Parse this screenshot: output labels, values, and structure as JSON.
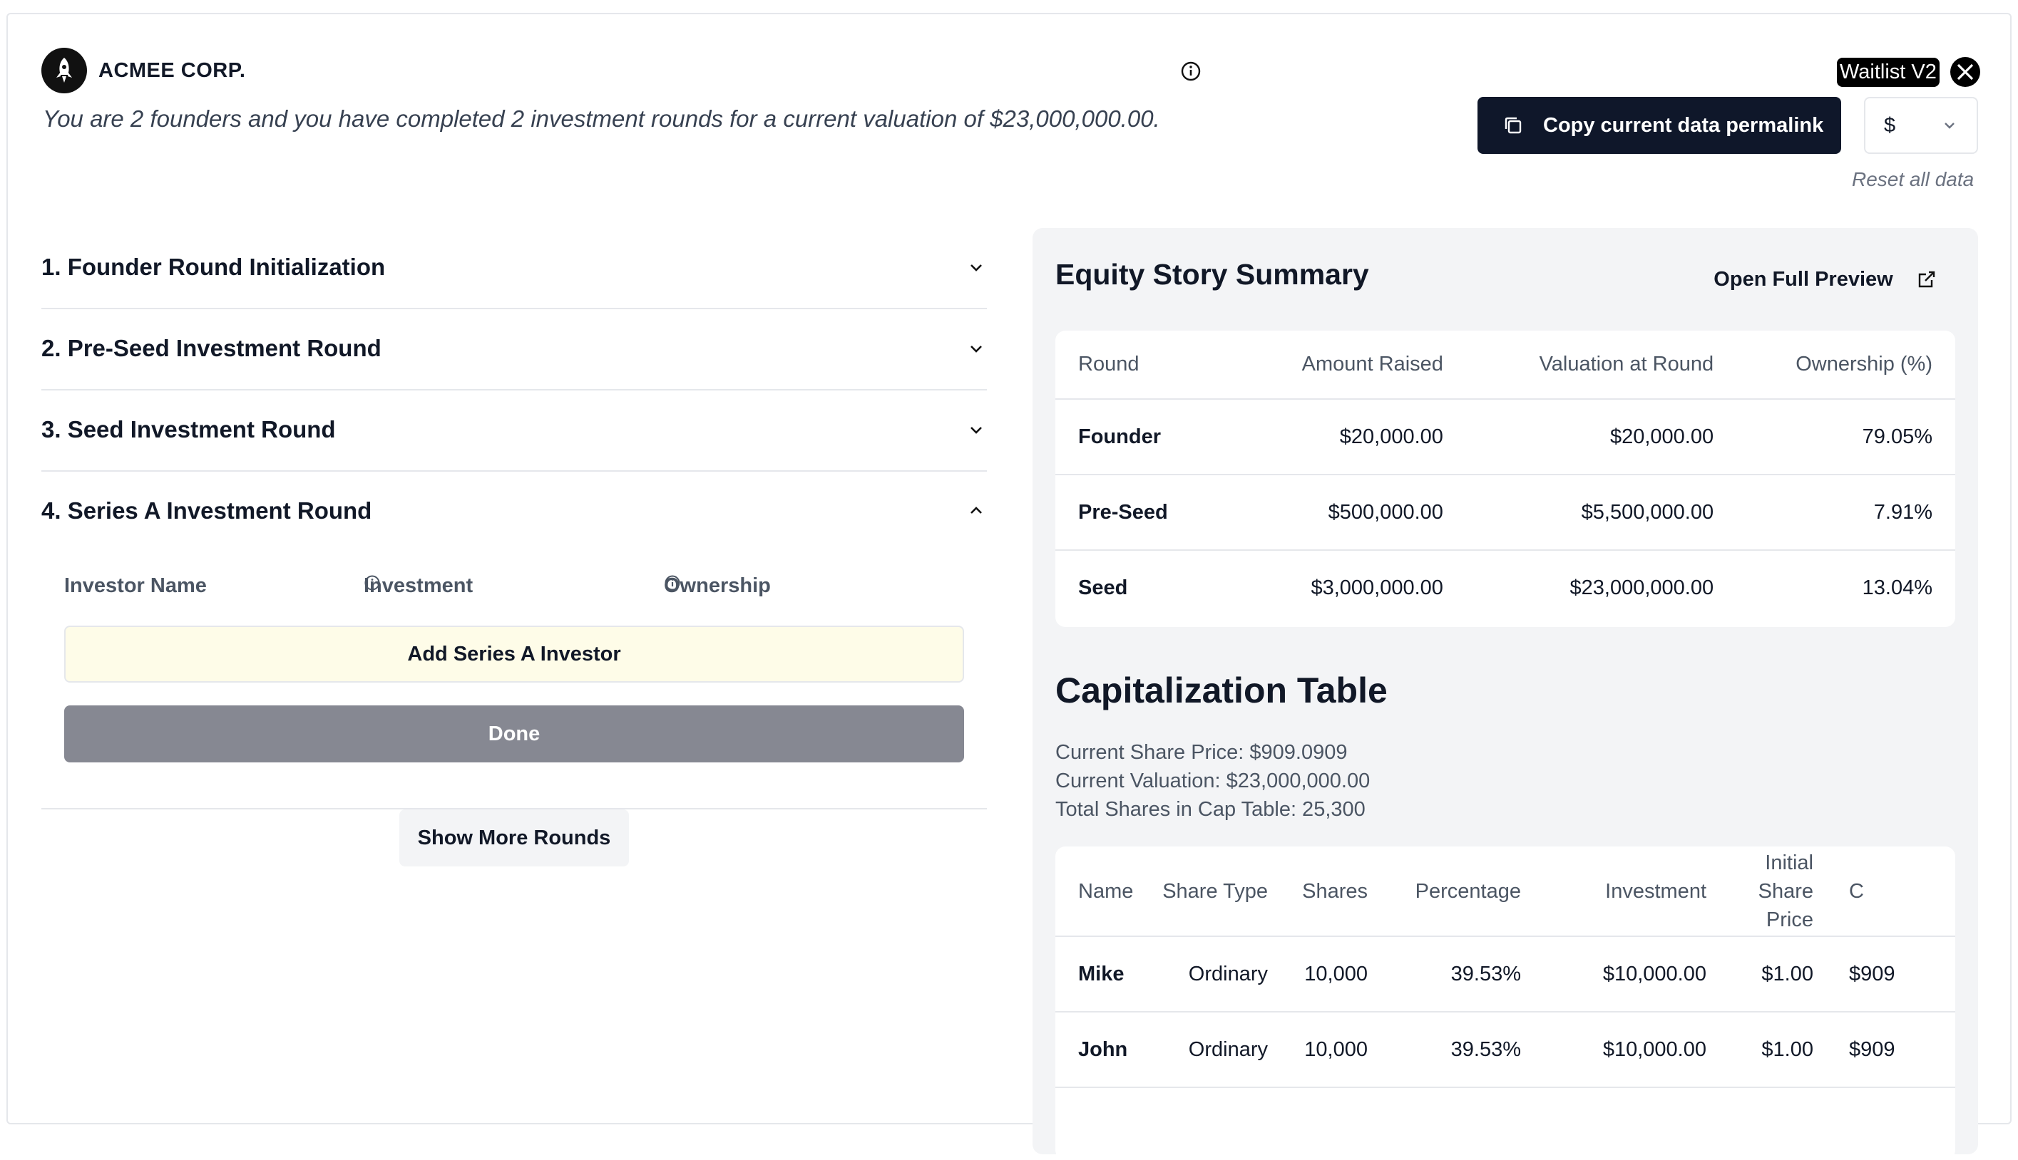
{
  "header": {
    "company": "ACMEE CORP.",
    "tagline": "You are 2 founders and you have completed 2 investment rounds for a current valuation of $23,000,000.00.",
    "waitlist_label": "Waitlist V2",
    "copy_permalink_label": "Copy current data permalink",
    "currency_value": "$",
    "reset_label": "Reset all data"
  },
  "rounds": [
    {
      "label": "1. Founder Round Initialization"
    },
    {
      "label": "2. Pre-Seed Investment Round"
    },
    {
      "label": "3. Seed Investment Round"
    },
    {
      "label": "4. Series A Investment Round"
    }
  ],
  "series_a": {
    "col_investor": "Investor Name",
    "col_investment": "Investment",
    "col_ownership": "Ownership",
    "add_label": "Add Series A Investor",
    "done_label": "Done"
  },
  "show_more_label": "Show More Rounds",
  "summary": {
    "title": "Equity Story Summary",
    "preview_label": "Open Full Preview",
    "headers": [
      "Round",
      "Amount Raised",
      "Valuation at Round",
      "Ownership (%)"
    ],
    "rows": [
      [
        "Founder",
        "$20,000.00",
        "$20,000.00",
        "79.05%"
      ],
      [
        "Pre-Seed",
        "$500,000.00",
        "$5,500,000.00",
        "7.91%"
      ],
      [
        "Seed",
        "$3,000,000.00",
        "$23,000,000.00",
        "13.04%"
      ]
    ]
  },
  "cap_table": {
    "title": "Capitalization Table",
    "share_price": "Current Share Price: $909.0909",
    "valuation": "Current Valuation: $23,000,000.00",
    "total_shares": "Total Shares in Cap Table: 25,300",
    "headers": [
      "Name",
      "Share Type",
      "Shares",
      "Percentage",
      "Investment",
      "Initial Share Price",
      "C"
    ],
    "rows": [
      [
        "Mike",
        "Ordinary",
        "10,000",
        "39.53%",
        "$10,000.00",
        "$1.00",
        "$909"
      ],
      [
        "John",
        "Ordinary",
        "10,000",
        "39.53%",
        "$10,000.00",
        "$1.00",
        "$909"
      ]
    ]
  },
  "colors": {
    "primary_dark": "#0f172a",
    "panel_bg": "#f3f4f6",
    "add_bg": "#fefce8",
    "done_bg": "#868892"
  }
}
